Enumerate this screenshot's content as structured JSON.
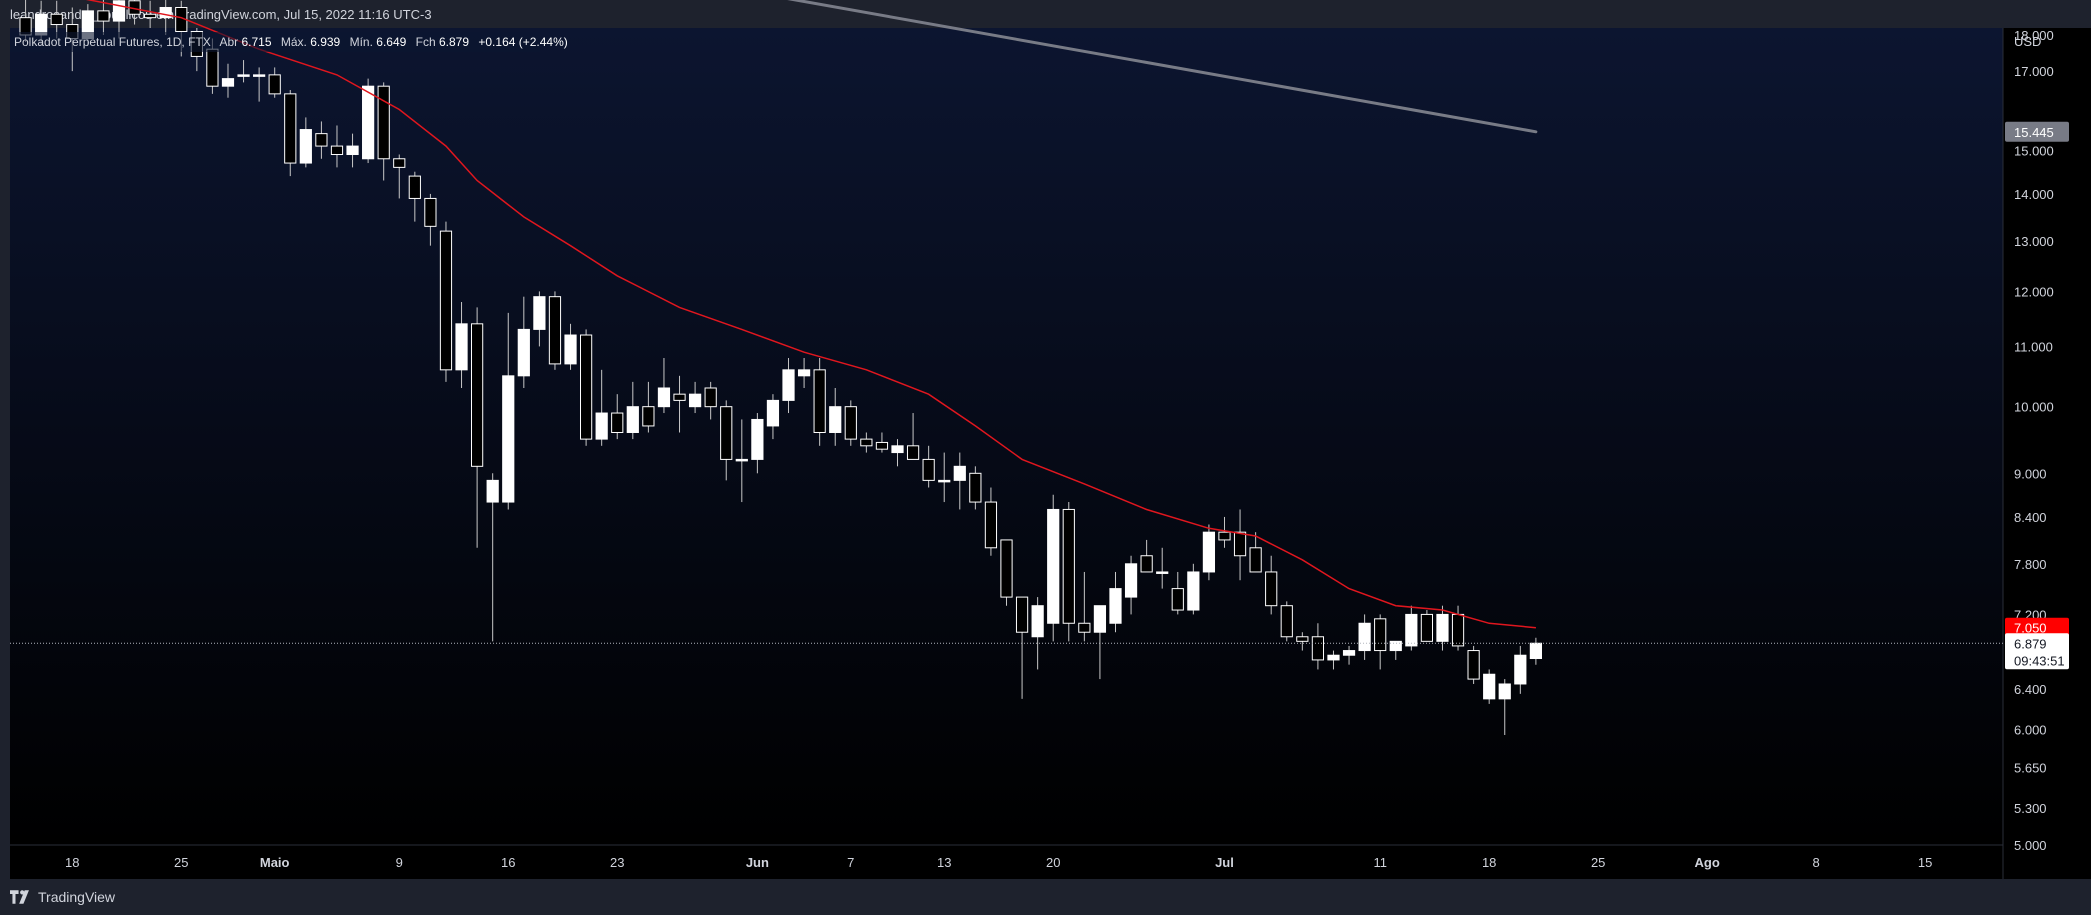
{
  "header": {
    "published_by": "leandrosander_ publicou em TradingView.com, Jul 15, 2022 11:16 UTC-3"
  },
  "legend": {
    "symbol": "Polkadot Perpetual Futures, 1D, FTX",
    "open_label": "Abr",
    "open_value": "6.715",
    "high_label": "Máx.",
    "high_value": "6.939",
    "low_label": "Mín.",
    "low_value": "6.649",
    "close_label": "Fch",
    "close_value": "6.879",
    "change": "+0.164 (+2.44%)"
  },
  "price_axis": {
    "currency": "USD",
    "ticks": [
      "18.000",
      "17.000",
      "15.445",
      "15.000",
      "14.000",
      "13.000",
      "12.000",
      "11.000",
      "10.000",
      "9.000",
      "8.400",
      "7.800",
      "7.200",
      "6.400",
      "6.000",
      "5.650",
      "5.300",
      "5.000"
    ]
  },
  "price_tags": {
    "grey_line_value": "15.445",
    "ma_value": "7.050",
    "last_price": "6.879",
    "countdown": "09:43:51"
  },
  "time_axis": {
    "labels": [
      "18",
      "25",
      "Maio",
      "9",
      "16",
      "23",
      "Jun",
      "7",
      "13",
      "20",
      "Jul",
      "11",
      "18",
      "25",
      "Ago",
      "8",
      "15"
    ]
  },
  "footer": {
    "brand": "TradingView"
  },
  "colors": {
    "background_top": "#0c1530",
    "background_bottom": "#000000",
    "candle_up": "#ffffff",
    "candle_down": "#000000",
    "ma_line": "#e0161e",
    "trend_line": "#787b86",
    "ma_tag": "#ff0000",
    "grey_tag": "#787b86"
  },
  "chart_data": {
    "type": "candlestick",
    "scale": "log",
    "ylim": [
      5.0,
      18.2
    ],
    "interval": "1D",
    "x_start_date": "2022-04-14",
    "x_end_date": "2022-08-20",
    "candles": [
      {
        "d": "2022-04-15",
        "o": 18.5,
        "h": 19.1,
        "l": 17.8,
        "c": 18.0
      },
      {
        "d": "2022-04-16",
        "o": 18.0,
        "h": 19.0,
        "l": 17.7,
        "c": 18.6
      },
      {
        "d": "2022-04-17",
        "o": 18.6,
        "h": 19.0,
        "l": 17.9,
        "c": 18.3
      },
      {
        "d": "2022-04-18",
        "o": 18.3,
        "h": 18.8,
        "l": 17.0,
        "c": 17.9
      },
      {
        "d": "2022-04-19",
        "o": 17.9,
        "h": 18.9,
        "l": 17.7,
        "c": 18.7
      },
      {
        "d": "2022-04-20",
        "o": 18.7,
        "h": 19.2,
        "l": 18.0,
        "c": 18.4
      },
      {
        "d": "2022-04-21",
        "o": 18.4,
        "h": 19.5,
        "l": 17.9,
        "c": 19.0
      },
      {
        "d": "2022-04-22",
        "o": 19.0,
        "h": 19.3,
        "l": 18.3,
        "c": 18.6
      },
      {
        "d": "2022-04-23",
        "o": 18.6,
        "h": 19.0,
        "l": 18.2,
        "c": 18.5
      },
      {
        "d": "2022-04-24",
        "o": 18.5,
        "h": 19.1,
        "l": 18.0,
        "c": 18.8
      },
      {
        "d": "2022-04-25",
        "o": 18.8,
        "h": 19.0,
        "l": 17.4,
        "c": 18.1
      },
      {
        "d": "2022-04-26",
        "o": 18.1,
        "h": 18.2,
        "l": 17.0,
        "c": 17.4
      },
      {
        "d": "2022-04-27",
        "o": 17.6,
        "h": 17.9,
        "l": 16.4,
        "c": 16.6
      },
      {
        "d": "2022-04-28",
        "o": 16.6,
        "h": 17.2,
        "l": 16.3,
        "c": 16.8
      },
      {
        "d": "2022-04-29",
        "o": 16.9,
        "h": 17.3,
        "l": 16.7,
        "c": 16.9
      },
      {
        "d": "2022-04-30",
        "o": 16.9,
        "h": 17.1,
        "l": 16.2,
        "c": 16.9
      },
      {
        "d": "2022-05-01",
        "o": 16.9,
        "h": 17.1,
        "l": 16.3,
        "c": 16.4
      },
      {
        "d": "2022-05-02",
        "o": 16.4,
        "h": 16.5,
        "l": 14.4,
        "c": 14.7
      },
      {
        "d": "2022-05-03",
        "o": 14.7,
        "h": 15.8,
        "l": 14.6,
        "c": 15.5
      },
      {
        "d": "2022-05-04",
        "o": 15.4,
        "h": 15.7,
        "l": 14.8,
        "c": 15.1
      },
      {
        "d": "2022-05-05",
        "o": 15.1,
        "h": 15.6,
        "l": 14.6,
        "c": 14.9
      },
      {
        "d": "2022-05-06",
        "o": 14.9,
        "h": 15.4,
        "l": 14.6,
        "c": 15.1
      },
      {
        "d": "2022-05-07",
        "o": 14.8,
        "h": 16.8,
        "l": 14.7,
        "c": 16.6
      },
      {
        "d": "2022-05-08",
        "o": 16.6,
        "h": 16.7,
        "l": 14.3,
        "c": 14.8
      },
      {
        "d": "2022-05-09",
        "o": 14.8,
        "h": 14.9,
        "l": 13.9,
        "c": 14.6
      },
      {
        "d": "2022-05-10",
        "o": 14.4,
        "h": 14.5,
        "l": 13.4,
        "c": 13.9
      },
      {
        "d": "2022-05-11",
        "o": 13.9,
        "h": 14.0,
        "l": 12.9,
        "c": 13.3
      },
      {
        "d": "2022-05-12",
        "o": 13.2,
        "h": 13.4,
        "l": 10.4,
        "c": 10.6
      },
      {
        "d": "2022-05-13",
        "o": 10.6,
        "h": 11.8,
        "l": 10.3,
        "c": 11.4
      },
      {
        "d": "2022-05-14",
        "o": 11.4,
        "h": 11.7,
        "l": 8.0,
        "c": 9.1
      },
      {
        "d": "2022-05-15",
        "o": 8.6,
        "h": 9.0,
        "l": 6.9,
        "c": 8.9
      },
      {
        "d": "2022-05-16",
        "o": 8.6,
        "h": 11.6,
        "l": 8.5,
        "c": 10.5
      },
      {
        "d": "2022-05-17",
        "o": 10.5,
        "h": 11.9,
        "l": 10.3,
        "c": 11.3
      },
      {
        "d": "2022-05-18",
        "o": 11.3,
        "h": 12.0,
        "l": 11.0,
        "c": 11.9
      },
      {
        "d": "2022-05-19",
        "o": 11.9,
        "h": 12.0,
        "l": 10.6,
        "c": 10.7
      },
      {
        "d": "2022-05-20",
        "o": 10.7,
        "h": 11.4,
        "l": 10.6,
        "c": 11.2
      },
      {
        "d": "2022-05-21",
        "o": 11.2,
        "h": 11.3,
        "l": 9.4,
        "c": 9.5
      },
      {
        "d": "2022-05-22",
        "o": 9.5,
        "h": 10.6,
        "l": 9.4,
        "c": 9.9
      },
      {
        "d": "2022-05-23",
        "o": 9.9,
        "h": 10.2,
        "l": 9.5,
        "c": 9.6
      },
      {
        "d": "2022-05-24",
        "o": 9.6,
        "h": 10.4,
        "l": 9.5,
        "c": 10.0
      },
      {
        "d": "2022-05-25",
        "o": 10.0,
        "h": 10.4,
        "l": 9.6,
        "c": 9.7
      },
      {
        "d": "2022-05-26",
        "o": 10.0,
        "h": 10.8,
        "l": 9.9,
        "c": 10.3
      },
      {
        "d": "2022-05-27",
        "o": 10.2,
        "h": 10.5,
        "l": 9.6,
        "c": 10.1
      },
      {
        "d": "2022-05-28",
        "o": 10.0,
        "h": 10.4,
        "l": 9.9,
        "c": 10.2
      },
      {
        "d": "2022-05-29",
        "o": 10.3,
        "h": 10.4,
        "l": 9.8,
        "c": 10.0
      },
      {
        "d": "2022-05-30",
        "o": 10.0,
        "h": 10.1,
        "l": 8.9,
        "c": 9.2
      },
      {
        "d": "2022-05-31",
        "o": 9.2,
        "h": 9.8,
        "l": 8.6,
        "c": 9.2
      },
      {
        "d": "2022-06-01",
        "o": 9.2,
        "h": 9.9,
        "l": 9.0,
        "c": 9.8
      },
      {
        "d": "2022-06-02",
        "o": 9.7,
        "h": 10.2,
        "l": 9.5,
        "c": 10.1
      },
      {
        "d": "2022-06-03",
        "o": 10.1,
        "h": 10.8,
        "l": 9.9,
        "c": 10.6
      },
      {
        "d": "2022-06-04",
        "o": 10.5,
        "h": 10.8,
        "l": 10.3,
        "c": 10.6
      },
      {
        "d": "2022-06-05",
        "o": 10.6,
        "h": 10.8,
        "l": 9.4,
        "c": 9.6
      },
      {
        "d": "2022-06-06",
        "o": 9.6,
        "h": 10.3,
        "l": 9.4,
        "c": 10.0
      },
      {
        "d": "2022-06-07",
        "o": 10.0,
        "h": 10.1,
        "l": 9.4,
        "c": 9.5
      },
      {
        "d": "2022-06-08",
        "o": 9.5,
        "h": 9.6,
        "l": 9.3,
        "c": 9.4
      },
      {
        "d": "2022-06-09",
        "o": 9.45,
        "h": 9.6,
        "l": 9.3,
        "c": 9.35
      },
      {
        "d": "2022-06-10",
        "o": 9.3,
        "h": 9.5,
        "l": 9.1,
        "c": 9.4
      },
      {
        "d": "2022-06-11",
        "o": 9.4,
        "h": 9.9,
        "l": 9.2,
        "c": 9.2
      },
      {
        "d": "2022-06-12",
        "o": 9.2,
        "h": 9.4,
        "l": 8.8,
        "c": 8.9
      },
      {
        "d": "2022-06-13",
        "o": 8.9,
        "h": 9.3,
        "l": 8.6,
        "c": 8.9
      },
      {
        "d": "2022-06-14",
        "o": 8.9,
        "h": 9.3,
        "l": 8.5,
        "c": 9.1
      },
      {
        "d": "2022-06-15",
        "o": 9.0,
        "h": 9.1,
        "l": 8.5,
        "c": 8.6
      },
      {
        "d": "2022-06-16",
        "o": 8.6,
        "h": 8.8,
        "l": 7.9,
        "c": 8.0
      },
      {
        "d": "2022-06-17",
        "o": 8.1,
        "h": 8.1,
        "l": 7.3,
        "c": 7.4
      },
      {
        "d": "2022-06-18",
        "o": 7.4,
        "h": 7.4,
        "l": 6.3,
        "c": 7.0
      },
      {
        "d": "2022-06-19",
        "o": 6.95,
        "h": 7.4,
        "l": 6.6,
        "c": 7.3
      },
      {
        "d": "2022-06-20",
        "o": 7.1,
        "h": 8.7,
        "l": 6.9,
        "c": 8.5
      },
      {
        "d": "2022-06-21",
        "o": 8.5,
        "h": 8.6,
        "l": 6.9,
        "c": 7.1
      },
      {
        "d": "2022-06-22",
        "o": 7.1,
        "h": 7.7,
        "l": 6.9,
        "c": 7.0
      },
      {
        "d": "2022-06-23",
        "o": 7.0,
        "h": 7.3,
        "l": 6.5,
        "c": 7.3
      },
      {
        "d": "2022-06-24",
        "o": 7.1,
        "h": 7.7,
        "l": 7.0,
        "c": 7.5
      },
      {
        "d": "2022-06-25",
        "o": 7.4,
        "h": 7.9,
        "l": 7.2,
        "c": 7.8
      },
      {
        "d": "2022-06-26",
        "o": 7.9,
        "h": 8.1,
        "l": 7.7,
        "c": 7.7
      },
      {
        "d": "2022-06-27",
        "o": 7.7,
        "h": 8.0,
        "l": 7.5,
        "c": 7.7
      },
      {
        "d": "2022-06-28",
        "o": 7.5,
        "h": 7.7,
        "l": 7.2,
        "c": 7.25
      },
      {
        "d": "2022-06-29",
        "o": 7.25,
        "h": 7.8,
        "l": 7.2,
        "c": 7.7
      },
      {
        "d": "2022-06-30",
        "o": 7.7,
        "h": 8.3,
        "l": 7.6,
        "c": 8.2
      },
      {
        "d": "2022-07-01",
        "o": 8.2,
        "h": 8.4,
        "l": 8.0,
        "c": 8.1
      },
      {
        "d": "2022-07-02",
        "o": 8.2,
        "h": 8.5,
        "l": 7.6,
        "c": 7.9
      },
      {
        "d": "2022-07-03",
        "o": 8.0,
        "h": 8.2,
        "l": 7.7,
        "c": 7.7
      },
      {
        "d": "2022-07-04",
        "o": 7.7,
        "h": 7.9,
        "l": 7.2,
        "c": 7.3
      },
      {
        "d": "2022-07-05",
        "o": 7.3,
        "h": 7.35,
        "l": 6.9,
        "c": 6.95
      },
      {
        "d": "2022-07-06",
        "o": 6.95,
        "h": 7.0,
        "l": 6.8,
        "c": 6.9
      },
      {
        "d": "2022-07-07",
        "o": 6.95,
        "h": 7.1,
        "l": 6.6,
        "c": 6.7
      },
      {
        "d": "2022-07-08",
        "o": 6.7,
        "h": 6.8,
        "l": 6.6,
        "c": 6.75
      },
      {
        "d": "2022-07-09",
        "o": 6.75,
        "h": 6.85,
        "l": 6.65,
        "c": 6.8
      },
      {
        "d": "2022-07-10",
        "o": 6.8,
        "h": 7.2,
        "l": 6.7,
        "c": 7.1
      },
      {
        "d": "2022-07-11",
        "o": 7.15,
        "h": 7.2,
        "l": 6.6,
        "c": 6.8
      },
      {
        "d": "2022-07-12",
        "o": 6.8,
        "h": 6.9,
        "l": 6.7,
        "c": 6.9
      },
      {
        "d": "2022-07-13",
        "o": 6.85,
        "h": 7.3,
        "l": 6.8,
        "c": 7.2
      },
      {
        "d": "2022-07-14",
        "o": 7.2,
        "h": 7.25,
        "l": 6.9,
        "c": 6.9
      },
      {
        "d": "2022-07-15",
        "o": 6.9,
        "h": 7.3,
        "l": 6.8,
        "c": 7.2
      },
      {
        "d": "2022-07-16",
        "o": 7.2,
        "h": 7.3,
        "l": 6.8,
        "c": 6.85
      },
      {
        "d": "2022-07-17",
        "o": 6.8,
        "h": 6.85,
        "l": 6.45,
        "c": 6.5
      },
      {
        "d": "2022-07-18",
        "o": 6.3,
        "h": 6.6,
        "l": 6.25,
        "c": 6.55
      },
      {
        "d": "2022-07-19",
        "o": 6.3,
        "h": 6.5,
        "l": 5.95,
        "c": 6.45
      },
      {
        "d": "2022-07-20",
        "o": 6.45,
        "h": 6.85,
        "l": 6.35,
        "c": 6.75
      },
      {
        "d": "2022-07-21",
        "o": 6.715,
        "h": 6.939,
        "l": 6.649,
        "c": 6.879
      }
    ],
    "moving_average": [
      {
        "d": "2022-04-15",
        "v": 19.4
      },
      {
        "d": "2022-04-25",
        "v": 18.5
      },
      {
        "d": "2022-04-30",
        "v": 17.6
      },
      {
        "d": "2022-05-05",
        "v": 16.9
      },
      {
        "d": "2022-05-09",
        "v": 16.0
      },
      {
        "d": "2022-05-12",
        "v": 15.1
      },
      {
        "d": "2022-05-14",
        "v": 14.3
      },
      {
        "d": "2022-05-17",
        "v": 13.5
      },
      {
        "d": "2022-05-20",
        "v": 12.9
      },
      {
        "d": "2022-05-23",
        "v": 12.3
      },
      {
        "d": "2022-05-27",
        "v": 11.7
      },
      {
        "d": "2022-05-31",
        "v": 11.3
      },
      {
        "d": "2022-06-04",
        "v": 10.9
      },
      {
        "d": "2022-06-08",
        "v": 10.6
      },
      {
        "d": "2022-06-12",
        "v": 10.2
      },
      {
        "d": "2022-06-15",
        "v": 9.7
      },
      {
        "d": "2022-06-18",
        "v": 9.2
      },
      {
        "d": "2022-06-22",
        "v": 8.85
      },
      {
        "d": "2022-06-26",
        "v": 8.5
      },
      {
        "d": "2022-06-30",
        "v": 8.25
      },
      {
        "d": "2022-07-03",
        "v": 8.15
      },
      {
        "d": "2022-07-06",
        "v": 7.85
      },
      {
        "d": "2022-07-09",
        "v": 7.5
      },
      {
        "d": "2022-07-12",
        "v": 7.3
      },
      {
        "d": "2022-07-15",
        "v": 7.25
      },
      {
        "d": "2022-07-18",
        "v": 7.1
      },
      {
        "d": "2022-07-21",
        "v": 7.05
      }
    ],
    "trend_line": [
      {
        "d": "2022-05-30",
        "v": 19.4
      },
      {
        "d": "2022-07-21",
        "v": 15.445
      }
    ],
    "current_price": 6.879
  }
}
